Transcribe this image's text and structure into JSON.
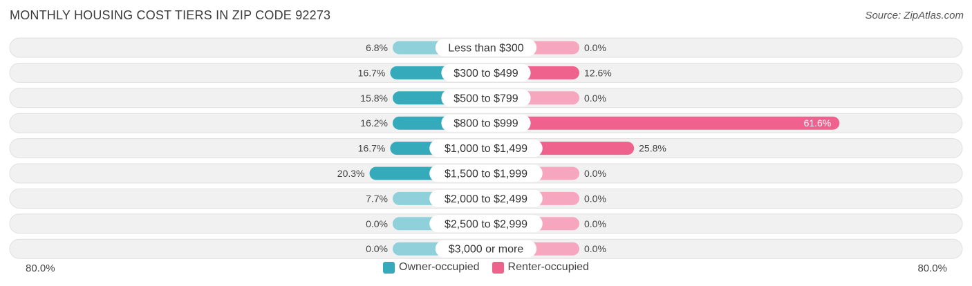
{
  "title": "MONTHLY HOUSING COST TIERS IN ZIP CODE 92273",
  "source": "Source: ZipAtlas.com",
  "axis": {
    "left_label": "80.0%",
    "right_label": "80.0%"
  },
  "legend": {
    "owner": {
      "label": "Owner-occupied",
      "color": "#35aabb"
    },
    "renter": {
      "label": "Renter-occupied",
      "color": "#f0628e"
    }
  },
  "chart_data": {
    "type": "bar",
    "orientation": "diverging-horizontal",
    "max": 80.0,
    "categories": [
      "Less than $300",
      "$300 to $499",
      "$500 to $799",
      "$800 to $999",
      "$1,000 to $1,499",
      "$1,500 to $1,999",
      "$2,000 to $2,499",
      "$2,500 to $2,999",
      "$3,000 or more"
    ],
    "series": [
      {
        "name": "Owner-occupied",
        "values": [
          6.8,
          16.7,
          15.8,
          16.2,
          16.7,
          20.3,
          7.7,
          0.0,
          0.0
        ],
        "labels": [
          "6.8%",
          "16.7%",
          "15.8%",
          "16.2%",
          "16.7%",
          "20.3%",
          "7.7%",
          "0.0%",
          "0.0%"
        ]
      },
      {
        "name": "Renter-occupied",
        "values": [
          0.0,
          12.6,
          0.0,
          61.6,
          25.8,
          0.0,
          0.0,
          0.0,
          0.0
        ],
        "labels": [
          "0.0%",
          "12.6%",
          "0.0%",
          "61.6%",
          "25.8%",
          "0.0%",
          "0.0%",
          "0.0%",
          "0.0%"
        ]
      }
    ]
  }
}
